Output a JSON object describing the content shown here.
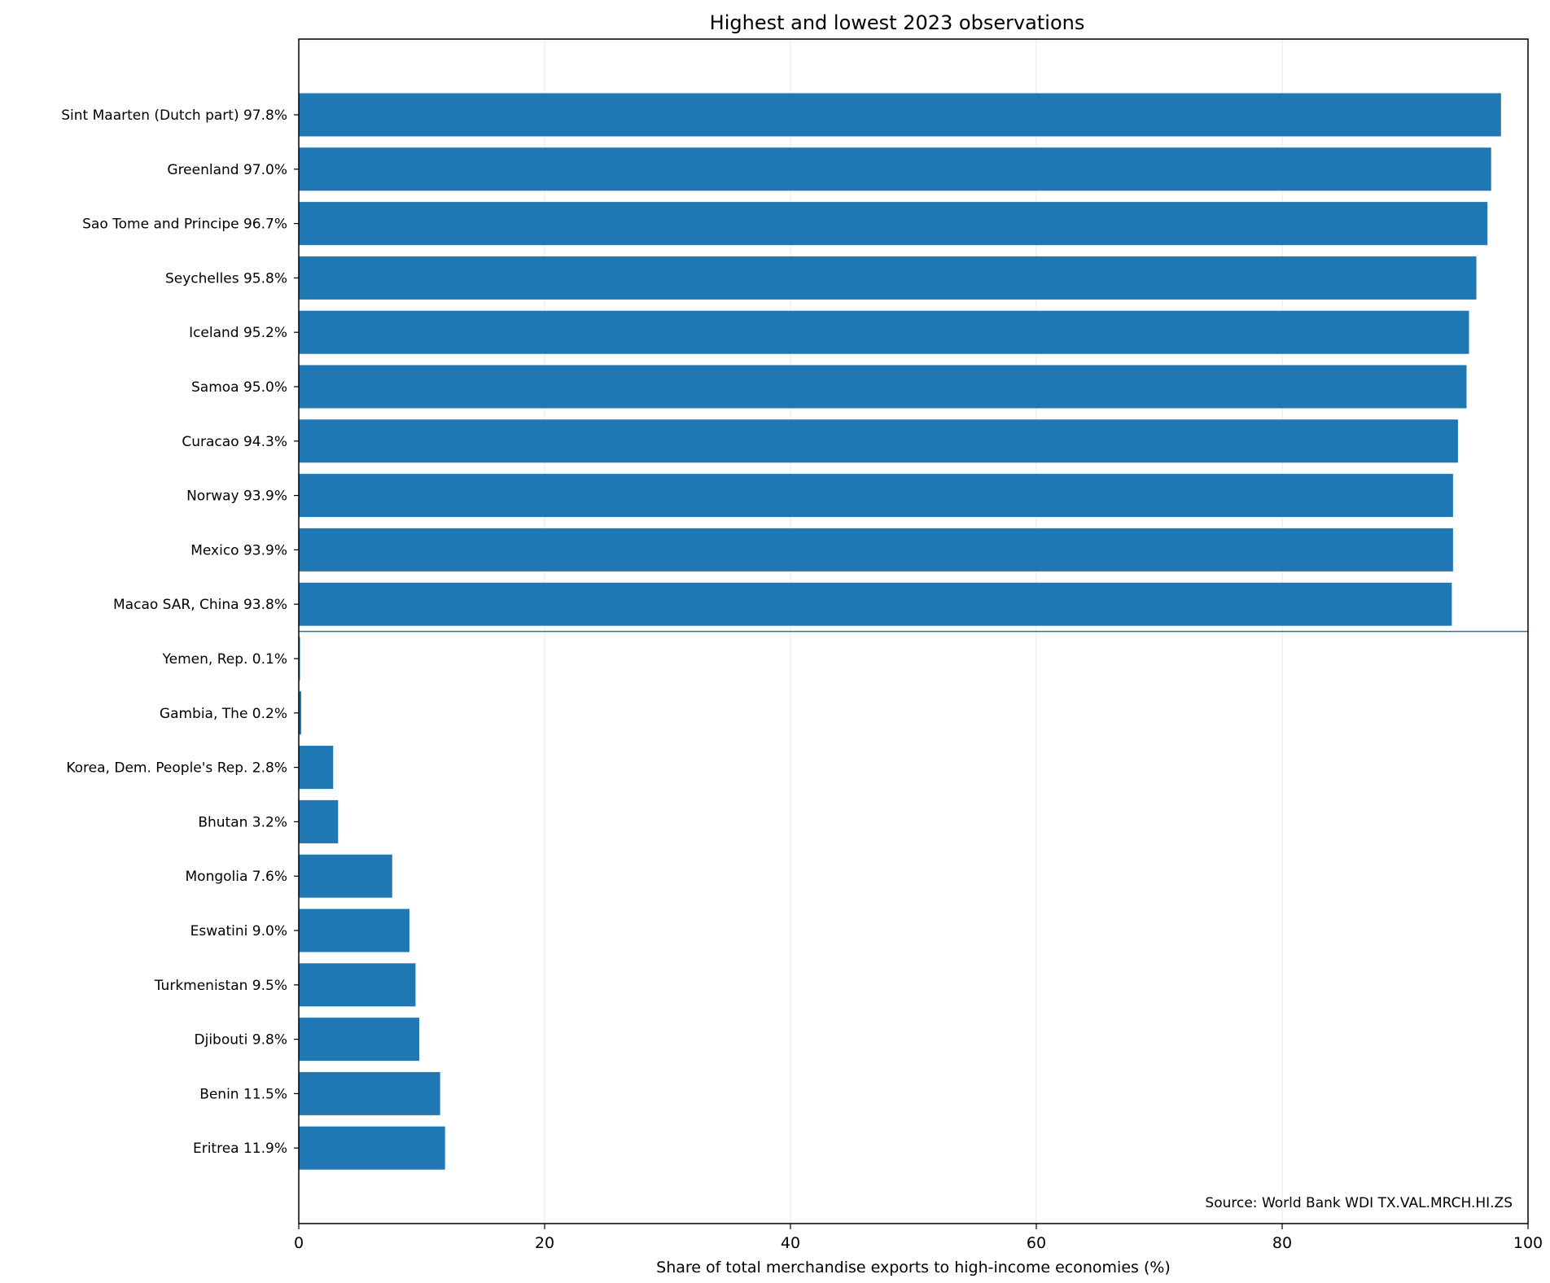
{
  "chart_data": {
    "type": "bar",
    "orientation": "horizontal",
    "title": "Highest and lowest 2023 observations",
    "xlabel": "Share of total merchandise exports to high-income economies (%)",
    "ylabel": "",
    "xlim": [
      0,
      100
    ],
    "xticks": [
      0,
      20,
      40,
      60,
      80,
      100
    ],
    "grid": "vertical",
    "bar_color": "#1f77b4",
    "separator_after_index": 9,
    "source": "Source: World Bank WDI TX.VAL.MRCH.HI.ZS",
    "categories": [
      "Sint Maarten (Dutch part)  97.8%",
      "Greenland  97.0%",
      "Sao Tome and Principe  96.7%",
      "Seychelles  95.8%",
      "Iceland  95.2%",
      "Samoa  95.0%",
      "Curacao  94.3%",
      "Norway  93.9%",
      "Mexico  93.9%",
      "Macao SAR, China  93.8%",
      "Yemen, Rep.  0.1%",
      "Gambia, The  0.2%",
      "Korea, Dem. People's Rep.  2.8%",
      "Bhutan  3.2%",
      "Mongolia  7.6%",
      "Eswatini  9.0%",
      "Turkmenistan  9.5%",
      "Djibouti  9.8%",
      "Benin  11.5%",
      "Eritrea  11.9%"
    ],
    "values": [
      97.8,
      97.0,
      96.7,
      95.8,
      95.2,
      95.0,
      94.3,
      93.9,
      93.9,
      93.8,
      0.1,
      0.2,
      2.8,
      3.2,
      7.6,
      9.0,
      9.5,
      9.8,
      11.5,
      11.9
    ]
  }
}
